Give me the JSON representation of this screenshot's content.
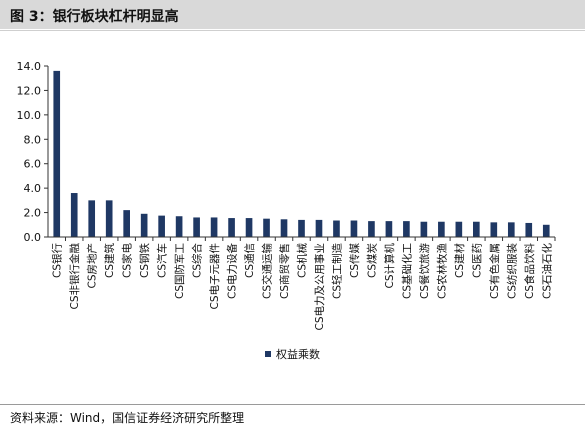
{
  "header": {
    "title": "图 3：银行板块杠杆明显高"
  },
  "footer": {
    "source": "资料来源：Wind，国信证券经济研究所整理"
  },
  "colors": {
    "bar": "#1f3864",
    "title_bg": "#d9d9d9"
  },
  "chart_data": {
    "type": "bar",
    "title": "",
    "xlabel": "",
    "ylabel": "",
    "ylim": [
      0,
      14
    ],
    "yticks": [
      "0.0",
      "2.0",
      "4.0",
      "6.0",
      "8.0",
      "10.0",
      "12.0",
      "14.0"
    ],
    "grid": false,
    "legend_position": "bottom",
    "categories": [
      "CS银行",
      "CS非银行金融",
      "CS房地产",
      "CS建筑",
      "CS家电",
      "CS钢铁",
      "CS汽车",
      "CS国防军工",
      "CS综合",
      "CS电子元器件",
      "CS电力设备",
      "CS通信",
      "CS交通运输",
      "CS商贸零售",
      "CS机械",
      "CS电力及公用事业",
      "CS轻工制造",
      "CS传媒",
      "CS煤炭",
      "CS计算机",
      "CS基础化工",
      "CS餐饮旅游",
      "CS农林牧渔",
      "CS建材",
      "CS医药",
      "CS有色金属",
      "CS纺织服装",
      "CS食品饮料",
      "CS石油石化"
    ],
    "series": [
      {
        "name": "权益乘数",
        "values": [
          13.6,
          3.6,
          3.0,
          3.0,
          2.2,
          1.9,
          1.75,
          1.7,
          1.6,
          1.6,
          1.55,
          1.55,
          1.5,
          1.45,
          1.4,
          1.4,
          1.35,
          1.35,
          1.3,
          1.3,
          1.3,
          1.25,
          1.25,
          1.25,
          1.25,
          1.2,
          1.2,
          1.15,
          1.0
        ]
      }
    ]
  }
}
